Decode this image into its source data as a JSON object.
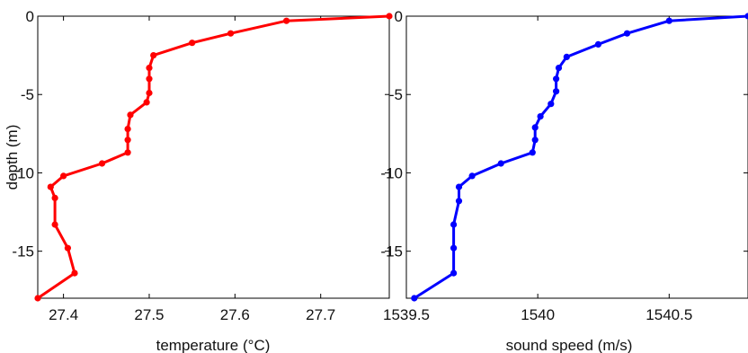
{
  "chart_data": [
    {
      "type": "line",
      "xlabel": "temperature (°C)",
      "ylabel": "depth (m)",
      "xlim": [
        27.37,
        27.78
      ],
      "ylim": [
        -18,
        0
      ],
      "xticks": [
        27.4,
        27.5,
        27.6,
        27.7
      ],
      "xtick_labels": [
        "27.4",
        "27.5",
        "27.6",
        "27.7"
      ],
      "yticks": [
        0,
        -5,
        -10,
        -15
      ],
      "ytick_labels": [
        "0",
        "-5",
        "-10",
        "-15"
      ],
      "grid": false,
      "color": "#ff0000",
      "series": [
        {
          "x": [
            27.78,
            27.66,
            27.595,
            27.55,
            27.505,
            27.5,
            27.5,
            27.5,
            27.497,
            27.478,
            27.475,
            27.475,
            27.475,
            27.445,
            27.4,
            27.385,
            27.39,
            27.39,
            27.405,
            27.413,
            27.37
          ],
          "y": [
            0,
            -0.3,
            -1.1,
            -1.7,
            -2.5,
            -3.3,
            -4.0,
            -4.9,
            -5.5,
            -6.3,
            -7.2,
            -7.9,
            -8.7,
            -9.4,
            -10.2,
            -10.9,
            -11.6,
            -13.3,
            -14.8,
            -16.4,
            -18
          ]
        }
      ]
    },
    {
      "type": "line",
      "xlabel": "sound speed (m/s)",
      "ylabel": "",
      "xlim": [
        1539.5,
        1540.8
      ],
      "ylim": [
        -18,
        0
      ],
      "xticks": [
        1539.5,
        1540,
        1540.5
      ],
      "xtick_labels": [
        "1539.5",
        "1540",
        "1540.5"
      ],
      "yticks": [
        0,
        -5,
        -10,
        -15
      ],
      "ytick_labels": [
        "0",
        "-5",
        "-10",
        "-15"
      ],
      "grid": false,
      "color": "#0000ff",
      "series": [
        {
          "x": [
            1540.8,
            1540.5,
            1540.34,
            1540.23,
            1540.11,
            1540.08,
            1540.07,
            1540.07,
            1540.05,
            1540.01,
            1539.99,
            1539.99,
            1539.98,
            1539.86,
            1539.75,
            1539.7,
            1539.7,
            1539.68,
            1539.68,
            1539.68,
            1539.53
          ],
          "y": [
            0,
            -0.3,
            -1.1,
            -1.8,
            -2.6,
            -3.3,
            -4.0,
            -4.8,
            -5.6,
            -6.4,
            -7.1,
            -7.9,
            -8.7,
            -9.4,
            -10.2,
            -10.9,
            -11.8,
            -13.3,
            -14.8,
            -16.4,
            -18
          ]
        }
      ]
    }
  ]
}
